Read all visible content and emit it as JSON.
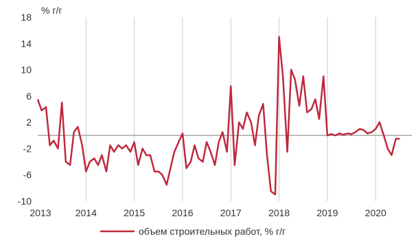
{
  "chart_data": {
    "type": "line",
    "title": "",
    "xlabel": "",
    "ylabel": "% г/г",
    "ylim": [
      -10,
      18
    ],
    "yticks": [
      -10,
      -6,
      -2,
      2,
      6,
      10,
      14,
      18
    ],
    "xlim": [
      2013,
      2020.75
    ],
    "xticks": [
      "2013",
      "2014",
      "2015",
      "2016",
      "2017",
      "2018",
      "2019",
      "2020"
    ],
    "grid": "vertical",
    "legend_position": "bottom",
    "colors": {
      "series": "#C0283C",
      "grid": "#cccccc",
      "zero": "#999999"
    },
    "series": [
      {
        "name": "объем строительных работ, % г/г",
        "x": [
          2013.0,
          2013.08,
          2013.17,
          2013.25,
          2013.33,
          2013.42,
          2013.5,
          2013.58,
          2013.67,
          2013.75,
          2013.83,
          2013.92,
          2014.0,
          2014.08,
          2014.17,
          2014.25,
          2014.33,
          2014.42,
          2014.5,
          2014.58,
          2014.67,
          2014.75,
          2014.83,
          2014.92,
          2015.0,
          2015.08,
          2015.17,
          2015.25,
          2015.33,
          2015.42,
          2015.5,
          2015.58,
          2015.67,
          2015.75,
          2015.83,
          2015.92,
          2016.0,
          2016.08,
          2016.17,
          2016.25,
          2016.33,
          2016.42,
          2016.5,
          2016.58,
          2016.67,
          2016.75,
          2016.83,
          2016.92,
          2017.0,
          2017.08,
          2017.17,
          2017.25,
          2017.33,
          2017.42,
          2017.5,
          2017.58,
          2017.67,
          2017.75,
          2017.83,
          2017.92,
          2018.0,
          2018.08,
          2018.17,
          2018.25,
          2018.33,
          2018.42,
          2018.5,
          2018.58,
          2018.67,
          2018.75,
          2018.83,
          2018.92,
          2019.0,
          2019.08,
          2019.17,
          2019.25,
          2019.33,
          2019.42,
          2019.5,
          2019.58,
          2019.67,
          2019.75,
          2019.83,
          2019.92,
          2020.0,
          2020.08,
          2020.17,
          2020.25,
          2020.33,
          2020.42,
          2020.5
        ],
        "values": [
          5.5,
          3.8,
          4.3,
          -1.5,
          -0.8,
          -2.0,
          5.0,
          -4.0,
          -4.5,
          0.5,
          1.3,
          -1.5,
          -5.5,
          -4.0,
          -3.5,
          -4.5,
          -3.0,
          -5.5,
          -1.5,
          -2.5,
          -1.5,
          -2.0,
          -1.5,
          -2.5,
          -1.0,
          -4.5,
          -2.0,
          -3.0,
          -3.0,
          -5.5,
          -5.5,
          -6.0,
          -7.5,
          -5.0,
          -2.5,
          -1.0,
          0.3,
          -5.0,
          -4.0,
          -1.5,
          -3.5,
          -4.0,
          -1.0,
          -2.5,
          -4.5,
          -1.0,
          0.5,
          -2.5,
          7.5,
          -4.5,
          2.0,
          1.0,
          3.5,
          2.0,
          -1.5,
          3.0,
          4.8,
          -3.0,
          -8.5,
          -9.0,
          15.0,
          9.0,
          -2.5,
          10.0,
          8.5,
          4.5,
          9.0,
          3.5,
          4.0,
          5.5,
          2.5,
          9.0,
          0.0,
          0.2,
          0.0,
          0.3,
          0.1,
          0.3,
          0.2,
          0.5,
          1.0,
          0.8,
          0.3,
          0.5,
          1.0,
          2.0,
          0.0,
          -2.0,
          -3.0,
          -0.5,
          -0.5
        ]
      }
    ]
  }
}
